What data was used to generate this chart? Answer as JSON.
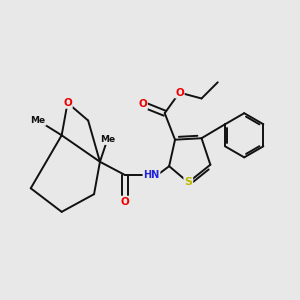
{
  "background_color": "#e8e8e8",
  "bond_color": "#111111",
  "bond_width": 1.4,
  "figsize": [
    3.0,
    3.0
  ],
  "dpi": 100,
  "atom_colors": {
    "O": "#ee0000",
    "N": "#2222dd",
    "S": "#bbbb00",
    "C": "#111111"
  },
  "xlim": [
    0,
    10
  ],
  "ylim": [
    1,
    11
  ]
}
